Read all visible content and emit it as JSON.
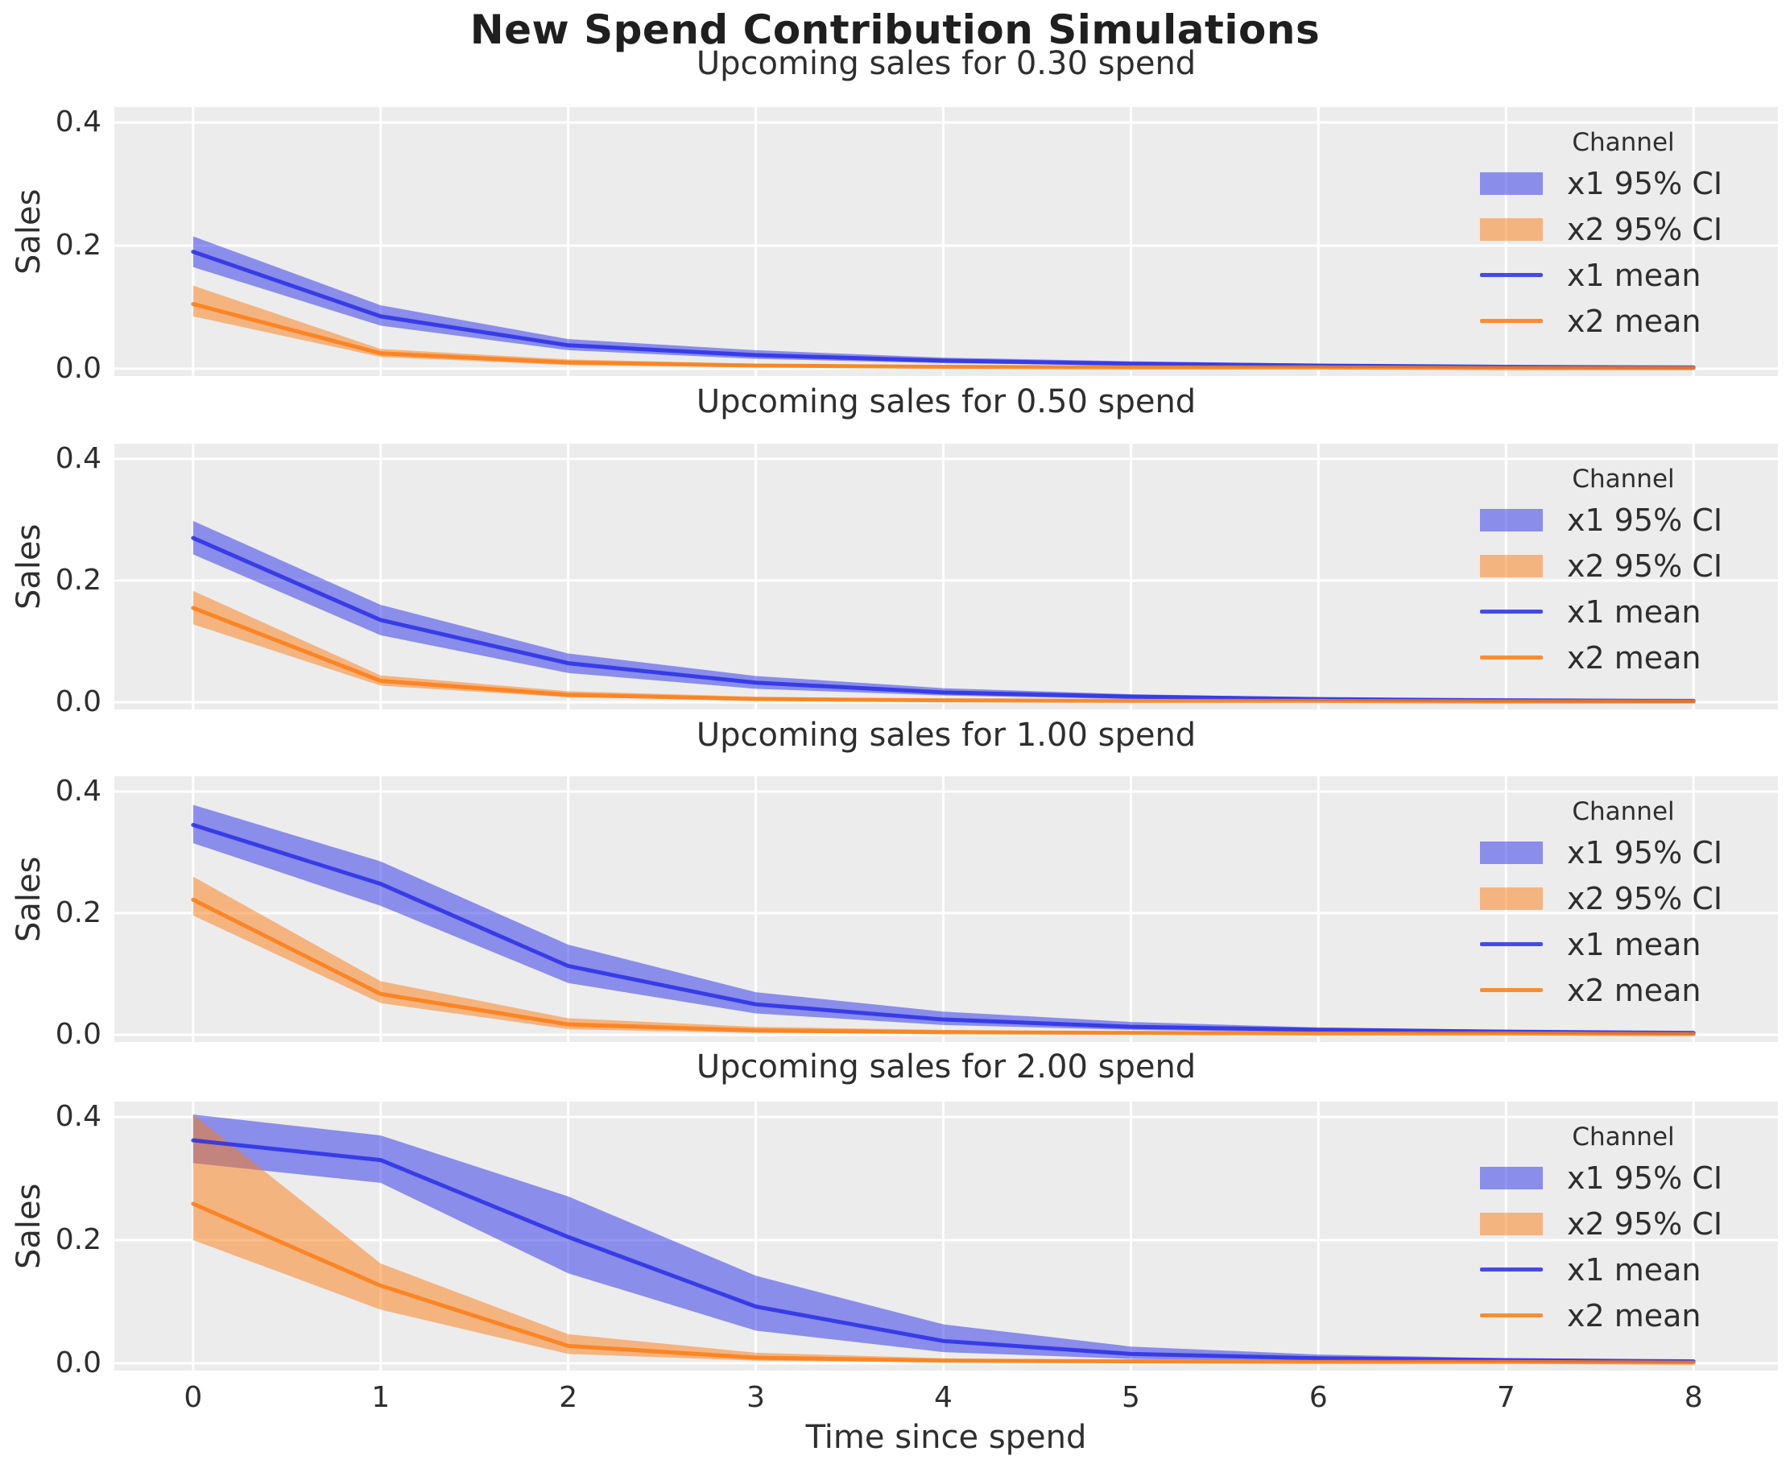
{
  "figure": {
    "title": "New Spend Contribution Simulations",
    "xlabel": "Time since spend",
    "ylabel": "Sales",
    "colors": {
      "x1_base": "#282ee6",
      "x2_base": "#fc7c14",
      "axes_bg": "#ececec",
      "grid": "#ffffff",
      "fill_opacity": 0.5,
      "line_opacity": 0.85,
      "text": "#2e2e2e",
      "title_text": "#1f1f1f"
    },
    "legend": {
      "title": "Channel",
      "entries": [
        {
          "label": "x1 95% CI",
          "kind": "patch",
          "color": "x1"
        },
        {
          "label": "x2 95% CI",
          "kind": "patch",
          "color": "x2"
        },
        {
          "label": "x1 mean",
          "kind": "line",
          "color": "x1"
        },
        {
          "label": "x2 mean",
          "kind": "line",
          "color": "x2"
        }
      ]
    }
  },
  "chart_data": [
    {
      "type": "line",
      "title": "Upcoming sales for 0.30 spend",
      "spend": 0.3,
      "xlabel": "Time since spend",
      "ylabel": "Sales",
      "x": [
        0,
        1,
        2,
        3,
        4,
        5,
        6,
        7,
        8
      ],
      "xlim": [
        -0.42,
        8.45
      ],
      "ylim": [
        -0.012,
        0.425
      ],
      "grid": true,
      "legend_position": "upper right",
      "xticks": [
        {
          "label": "0",
          "value": 0
        },
        {
          "label": "1",
          "value": 1
        },
        {
          "label": "2",
          "value": 2
        },
        {
          "label": "3",
          "value": 3
        },
        {
          "label": "4",
          "value": 4
        },
        {
          "label": "5",
          "value": 5
        },
        {
          "label": "6",
          "value": 6
        },
        {
          "label": "7",
          "value": 7
        },
        {
          "label": "8",
          "value": 8
        }
      ],
      "yticks": [
        {
          "label": "0.0",
          "value": 0
        },
        {
          "label": "0.2",
          "value": 0.2
        },
        {
          "label": "0.4",
          "value": 0.4
        }
      ],
      "xticklabels_visible": false,
      "series": [
        {
          "name": "x1 95% CI",
          "kind": "band",
          "color": "x1",
          "lo": [
            0.165,
            0.07,
            0.03,
            0.016,
            0.009,
            0.005,
            0.003,
            0.002,
            0.001
          ],
          "hi": [
            0.215,
            0.103,
            0.048,
            0.03,
            0.018,
            0.012,
            0.008,
            0.005,
            0.004
          ]
        },
        {
          "name": "x2 95% CI",
          "kind": "band",
          "color": "x2",
          "lo": [
            0.085,
            0.019,
            0.006,
            0.003,
            0.002,
            0.001,
            0.001,
            0.001,
            0.001
          ],
          "hi": [
            0.135,
            0.032,
            0.015,
            0.008,
            0.005,
            0.004,
            0.003,
            0.002,
            0.002
          ]
        },
        {
          "name": "x1 mean",
          "kind": "line",
          "color": "x1",
          "values": [
            0.19,
            0.085,
            0.038,
            0.022,
            0.013,
            0.008,
            0.005,
            0.003,
            0.002
          ]
        },
        {
          "name": "x2 mean",
          "kind": "line",
          "color": "x2",
          "values": [
            0.105,
            0.025,
            0.01,
            0.005,
            0.003,
            0.002,
            0.002,
            0.001,
            0.001
          ]
        }
      ]
    },
    {
      "type": "line",
      "title": "Upcoming sales for 0.50 spend",
      "spend": 0.5,
      "xlabel": "Time since spend",
      "ylabel": "Sales",
      "x": [
        0,
        1,
        2,
        3,
        4,
        5,
        6,
        7,
        8
      ],
      "xlim": [
        -0.42,
        8.45
      ],
      "ylim": [
        -0.012,
        0.425
      ],
      "grid": true,
      "legend_position": "upper right",
      "xticks": [
        {
          "label": "0",
          "value": 0
        },
        {
          "label": "1",
          "value": 1
        },
        {
          "label": "2",
          "value": 2
        },
        {
          "label": "3",
          "value": 3
        },
        {
          "label": "4",
          "value": 4
        },
        {
          "label": "5",
          "value": 5
        },
        {
          "label": "6",
          "value": 6
        },
        {
          "label": "7",
          "value": 7
        },
        {
          "label": "8",
          "value": 8
        }
      ],
      "yticks": [
        {
          "label": "0.0",
          "value": 0
        },
        {
          "label": "0.2",
          "value": 0.2
        },
        {
          "label": "0.4",
          "value": 0.4
        }
      ],
      "xticklabels_visible": false,
      "series": [
        {
          "name": "x1 95% CI",
          "kind": "band",
          "color": "x1",
          "lo": [
            0.243,
            0.11,
            0.048,
            0.022,
            0.011,
            0.005,
            0.003,
            0.002,
            0.001
          ],
          "hi": [
            0.298,
            0.16,
            0.08,
            0.043,
            0.023,
            0.013,
            0.008,
            0.005,
            0.004
          ]
        },
        {
          "name": "x2 95% CI",
          "kind": "band",
          "color": "x2",
          "lo": [
            0.128,
            0.027,
            0.008,
            0.003,
            0.002,
            0.001,
            0.001,
            0.001,
            0.001
          ],
          "hi": [
            0.183,
            0.044,
            0.018,
            0.009,
            0.005,
            0.003,
            0.002,
            0.002,
            0.002
          ]
        },
        {
          "name": "x1 mean",
          "kind": "line",
          "color": "x1",
          "values": [
            0.27,
            0.135,
            0.064,
            0.032,
            0.016,
            0.009,
            0.005,
            0.003,
            0.002
          ]
        },
        {
          "name": "x2 mean",
          "kind": "line",
          "color": "x2",
          "values": [
            0.155,
            0.035,
            0.012,
            0.005,
            0.003,
            0.002,
            0.002,
            0.001,
            0.001
          ]
        }
      ]
    },
    {
      "type": "line",
      "title": "Upcoming sales for 1.00 spend",
      "spend": 1.0,
      "xlabel": "Time since spend",
      "ylabel": "Sales",
      "x": [
        0,
        1,
        2,
        3,
        4,
        5,
        6,
        7,
        8
      ],
      "xlim": [
        -0.42,
        8.45
      ],
      "ylim": [
        -0.012,
        0.425
      ],
      "grid": true,
      "legend_position": "upper right",
      "xticks": [
        {
          "label": "0",
          "value": 0
        },
        {
          "label": "1",
          "value": 1
        },
        {
          "label": "2",
          "value": 2
        },
        {
          "label": "3",
          "value": 3
        },
        {
          "label": "4",
          "value": 4
        },
        {
          "label": "5",
          "value": 5
        },
        {
          "label": "6",
          "value": 6
        },
        {
          "label": "7",
          "value": 7
        },
        {
          "label": "8",
          "value": 8
        }
      ],
      "yticks": [
        {
          "label": "0.0",
          "value": 0
        },
        {
          "label": "0.2",
          "value": 0.2
        },
        {
          "label": "0.4",
          "value": 0.4
        }
      ],
      "xticklabels_visible": false,
      "series": [
        {
          "name": "x1 95% CI",
          "kind": "band",
          "color": "x1",
          "lo": [
            0.315,
            0.212,
            0.085,
            0.035,
            0.016,
            0.008,
            0.004,
            0.002,
            0.002
          ],
          "hi": [
            0.378,
            0.285,
            0.148,
            0.07,
            0.038,
            0.021,
            0.012,
            0.008,
            0.005
          ]
        },
        {
          "name": "x2 95% CI",
          "kind": "band",
          "color": "x2",
          "lo": [
            0.196,
            0.052,
            0.009,
            0.003,
            0.002,
            0.001,
            0.001,
            0.001,
            0.001
          ],
          "hi": [
            0.26,
            0.088,
            0.027,
            0.013,
            0.008,
            0.005,
            0.003,
            0.002,
            0.002
          ]
        },
        {
          "name": "x1 mean",
          "kind": "line",
          "color": "x1",
          "values": [
            0.345,
            0.248,
            0.113,
            0.05,
            0.025,
            0.013,
            0.008,
            0.005,
            0.003
          ]
        },
        {
          "name": "x2 mean",
          "kind": "line",
          "color": "x2",
          "values": [
            0.222,
            0.067,
            0.017,
            0.007,
            0.004,
            0.003,
            0.002,
            0.002,
            0.001
          ]
        }
      ]
    },
    {
      "type": "line",
      "title": "Upcoming sales for 2.00 spend",
      "spend": 2.0,
      "xlabel": "Time since spend",
      "ylabel": "Sales",
      "x": [
        0,
        1,
        2,
        3,
        4,
        5,
        6,
        7,
        8
      ],
      "xlim": [
        -0.42,
        8.45
      ],
      "ylim": [
        -0.012,
        0.425
      ],
      "grid": true,
      "legend_position": "upper right",
      "xticks": [
        {
          "label": "0",
          "value": 0
        },
        {
          "label": "1",
          "value": 1
        },
        {
          "label": "2",
          "value": 2
        },
        {
          "label": "3",
          "value": 3
        },
        {
          "label": "4",
          "value": 4
        },
        {
          "label": "5",
          "value": 5
        },
        {
          "label": "6",
          "value": 6
        },
        {
          "label": "7",
          "value": 7
        },
        {
          "label": "8",
          "value": 8
        }
      ],
      "yticks": [
        {
          "label": "0.0",
          "value": 0
        },
        {
          "label": "0.2",
          "value": 0.2
        },
        {
          "label": "0.4",
          "value": 0.4
        }
      ],
      "xticklabels_visible": true,
      "series": [
        {
          "name": "x1 95% CI",
          "kind": "band",
          "color": "x1",
          "lo": [
            0.325,
            0.293,
            0.146,
            0.053,
            0.018,
            0.007,
            0.003,
            0.002,
            0.001
          ],
          "hi": [
            0.404,
            0.37,
            0.271,
            0.142,
            0.063,
            0.027,
            0.014,
            0.008,
            0.005
          ]
        },
        {
          "name": "x2 95% CI",
          "kind": "band",
          "color": "x2",
          "lo": [
            0.2,
            0.087,
            0.015,
            0.004,
            0.002,
            0.001,
            0.001,
            0.001,
            0.001
          ],
          "hi": [
            0.404,
            0.162,
            0.047,
            0.017,
            0.008,
            0.005,
            0.003,
            0.002,
            0.002
          ]
        },
        {
          "name": "x1 mean",
          "kind": "line",
          "color": "x1",
          "values": [
            0.362,
            0.33,
            0.205,
            0.092,
            0.036,
            0.015,
            0.008,
            0.005,
            0.003
          ]
        },
        {
          "name": "x2 mean",
          "kind": "line",
          "color": "x2",
          "values": [
            0.259,
            0.126,
            0.028,
            0.009,
            0.004,
            0.003,
            0.002,
            0.002,
            0.001
          ]
        }
      ]
    }
  ]
}
